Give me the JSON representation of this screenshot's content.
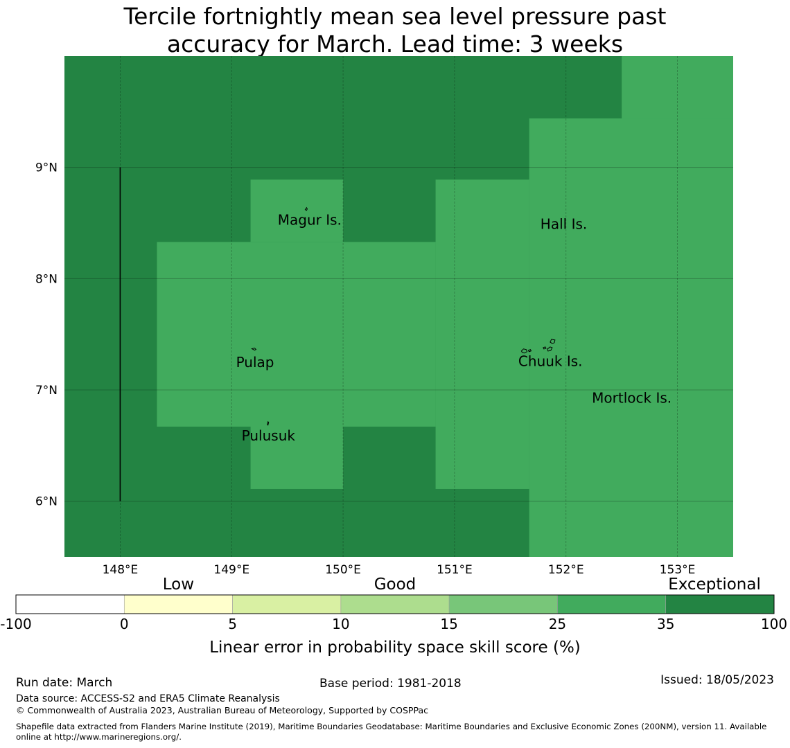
{
  "title": {
    "line1": "Tercile fortnightly mean sea level pressure past",
    "line2": "accuracy for March. Lead time: 3 weeks"
  },
  "map": {
    "lon_range": [
      147.5,
      153.5
    ],
    "lat_range": [
      5.5,
      10.0
    ],
    "lon_ticks": [
      {
        "value": 148,
        "label": "148°E"
      },
      {
        "value": 149,
        "label": "149°E"
      },
      {
        "value": 150,
        "label": "150°E"
      },
      {
        "value": 151,
        "label": "151°E"
      },
      {
        "value": 152,
        "label": "152°E"
      },
      {
        "value": 153,
        "label": "153°E"
      }
    ],
    "lat_ticks": [
      {
        "value": 9,
        "label": "9°N"
      },
      {
        "value": 8,
        "label": "8°N"
      },
      {
        "value": 7,
        "label": "7°N"
      },
      {
        "value": 6,
        "label": "6°N"
      }
    ],
    "base_class": "exceptional_high",
    "regions": [
      {
        "class": "exceptional_low",
        "lon": [
          152.5,
          153.5
        ],
        "lat": [
          9.44,
          10.0
        ]
      },
      {
        "class": "exceptional_low",
        "lon": [
          151.67,
          153.5
        ],
        "lat": [
          5.5,
          9.44
        ]
      },
      {
        "class": "exceptional_low",
        "lon": [
          150.83,
          151.67
        ],
        "lat": [
          6.11,
          8.89
        ]
      },
      {
        "class": "exceptional_low",
        "lon": [
          148.33,
          150.83
        ],
        "lat": [
          6.67,
          8.33
        ]
      },
      {
        "class": "exceptional_low",
        "lon": [
          149.17,
          150.0
        ],
        "lat": [
          8.33,
          8.89
        ]
      },
      {
        "class": "exceptional_low",
        "lon": [
          149.17,
          150.0
        ],
        "lat": [
          6.11,
          6.67
        ]
      }
    ],
    "boundary_line": {
      "lon": 148.0,
      "lat": [
        6.0,
        9.0
      ]
    },
    "places": [
      {
        "name": "Magur Is.",
        "lon": 149.7,
        "lat": 8.52
      },
      {
        "name": "Hall Is.",
        "lon": 151.98,
        "lat": 8.48
      },
      {
        "name": "Pulap",
        "lon": 149.21,
        "lat": 7.24
      },
      {
        "name": "Chuuk Is.",
        "lon": 151.86,
        "lat": 7.25
      },
      {
        "name": "Mortlock Is.",
        "lon": 152.59,
        "lat": 6.92
      },
      {
        "name": "Pulusuk",
        "lon": 149.33,
        "lat": 6.58
      }
    ]
  },
  "colorbar": {
    "categories": [
      {
        "label": "Low",
        "position": "between 0 and 5"
      },
      {
        "label": "Good",
        "position": "between 10 and 15"
      },
      {
        "label": "Exceptional",
        "position": "between 35 and 100"
      }
    ],
    "bins": [
      {
        "from": "-100",
        "to": "0",
        "color": "#ffffff"
      },
      {
        "from": "0",
        "to": "5",
        "color": "#ffffcc"
      },
      {
        "from": "5",
        "to": "10",
        "color": "#d9f0a3"
      },
      {
        "from": "10",
        "to": "15",
        "color": "#addd8e"
      },
      {
        "from": "15",
        "to": "25",
        "color": "#78c679"
      },
      {
        "from": "25",
        "to": "35",
        "color": "#41ab5d"
      },
      {
        "from": "35",
        "to": "100",
        "color": "#238443"
      }
    ],
    "tick_labels": [
      "-100",
      "0",
      "5",
      "10",
      "15",
      "25",
      "35",
      "100"
    ],
    "label": "Linear error in probability space skill score (%)"
  },
  "colors": {
    "exceptional_high": "#238443",
    "exceptional_low": "#41ab5d"
  },
  "footer": {
    "run_date": "Run date: March",
    "base_period": "Base period: 1981-2018",
    "issued": "Issued: 18/05/2023",
    "data_source": "Data source: ACCESS-S2 and ERA5 Climate Reanalysis",
    "copyright": "© Commonwealth of Australia 2023, Australian Bureau of Meteorology, Supported by COSPPac",
    "shapefile_line1": "Shapefile data extracted from Flanders Marine Institute (2019), Maritime Boundaries Geodatabase: Maritime Boundaries and Exclusive Economic Zones (200NM), version 11. Available",
    "shapefile_line2": "online at http://www.marineregions.org/."
  }
}
